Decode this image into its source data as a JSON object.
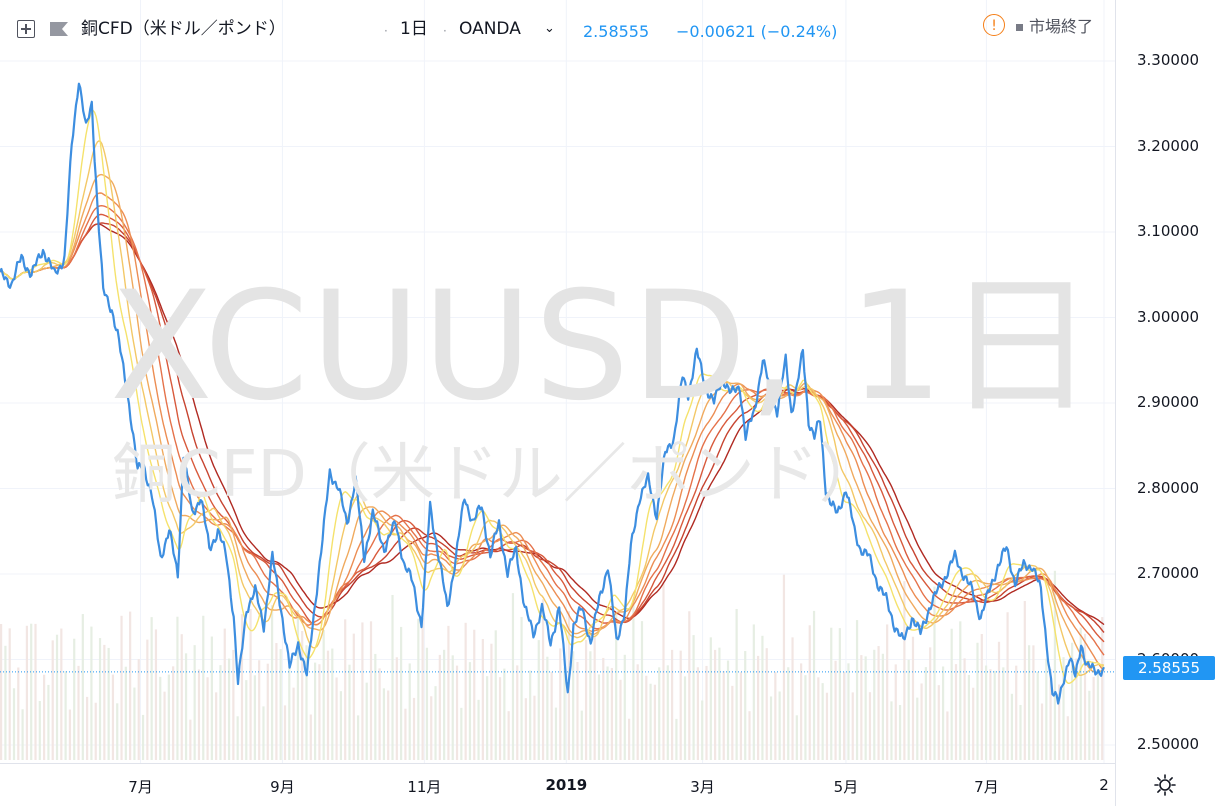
{
  "header": {
    "instrument": "銅CFD（米ドル／ポンド）",
    "separator": "·",
    "interval": "1日",
    "broker": "OANDA",
    "price": "2.58555",
    "change": "−0.00621 (−0.24%)",
    "market_status": "市場終了",
    "warning_icon": "warning-circle-icon",
    "add_icon": "plus-square-icon",
    "flag_icon": "flag-icon",
    "broker_icon": "chevron-down-icon"
  },
  "watermark": {
    "symbol": "XCUUSD, 1日",
    "name": "銅CFD（米ドル／ポンド）"
  },
  "last_price_label": "2.58555",
  "settings_icon": "gear-icon",
  "colors": {
    "price_line": "#3d8ee0",
    "ribbon": [
      "#f5e26c",
      "#f3c867",
      "#f0aa5e",
      "#ec8d53",
      "#e5724a",
      "#d85a3c",
      "#c74430",
      "#b02a22"
    ],
    "volume": "#e8ece4",
    "accent": "#2196f3",
    "warning": "#f57f17"
  },
  "chart_data": {
    "type": "line",
    "title": "銅CFD（米ドル／ポンド）· 1日 · OANDA",
    "ylim": [
      2.465,
      3.325
    ],
    "yticks": [
      "3.30000",
      "3.20000",
      "3.10000",
      "3.00000",
      "2.90000",
      "2.80000",
      "2.70000",
      "2.60000",
      "2.50000"
    ],
    "ytick_values": [
      3.3,
      3.2,
      3.1,
      3.0,
      2.9,
      2.8,
      2.7,
      2.6,
      2.5
    ],
    "xlabels": [
      "7月",
      "9月",
      "11月",
      "2019",
      "3月",
      "5月",
      "7月",
      "2"
    ],
    "xlabel_index": [
      98,
      197,
      296,
      395,
      490,
      590,
      688,
      770
    ],
    "xlim": [
      0,
      770
    ],
    "grid": true,
    "last_value": 2.58555,
    "price_anchors": [
      [
        0,
        3.05
      ],
      [
        8,
        3.04
      ],
      [
        15,
        3.07
      ],
      [
        22,
        3.05
      ],
      [
        30,
        3.08
      ],
      [
        38,
        3.05
      ],
      [
        45,
        3.07
      ],
      [
        50,
        3.2
      ],
      [
        55,
        3.28
      ],
      [
        60,
        3.22
      ],
      [
        64,
        3.25
      ],
      [
        68,
        3.13
      ],
      [
        72,
        3.03
      ],
      [
        78,
        3.01
      ],
      [
        82,
        2.98
      ],
      [
        90,
        2.9
      ],
      [
        96,
        2.82
      ],
      [
        100,
        2.83
      ],
      [
        106,
        2.79
      ],
      [
        112,
        2.72
      ],
      [
        118,
        2.75
      ],
      [
        124,
        2.7
      ],
      [
        128,
        2.84
      ],
      [
        134,
        2.77
      ],
      [
        140,
        2.79
      ],
      [
        146,
        2.73
      ],
      [
        152,
        2.75
      ],
      [
        158,
        2.72
      ],
      [
        163,
        2.65
      ],
      [
        166,
        2.57
      ],
      [
        172,
        2.66
      ],
      [
        178,
        2.68
      ],
      [
        184,
        2.64
      ],
      [
        190,
        2.72
      ],
      [
        196,
        2.66
      ],
      [
        202,
        2.59
      ],
      [
        208,
        2.62
      ],
      [
        214,
        2.58
      ],
      [
        220,
        2.67
      ],
      [
        225,
        2.74
      ],
      [
        230,
        2.82
      ],
      [
        236,
        2.8
      ],
      [
        242,
        2.76
      ],
      [
        248,
        2.81
      ],
      [
        254,
        2.72
      ],
      [
        260,
        2.77
      ],
      [
        268,
        2.73
      ],
      [
        276,
        2.76
      ],
      [
        282,
        2.71
      ],
      [
        288,
        2.69
      ],
      [
        294,
        2.64
      ],
      [
        300,
        2.78
      ],
      [
        306,
        2.72
      ],
      [
        312,
        2.66
      ],
      [
        318,
        2.72
      ],
      [
        324,
        2.79
      ],
      [
        330,
        2.76
      ],
      [
        336,
        2.78
      ],
      [
        342,
        2.72
      ],
      [
        348,
        2.76
      ],
      [
        354,
        2.7
      ],
      [
        360,
        2.73
      ],
      [
        366,
        2.66
      ],
      [
        372,
        2.63
      ],
      [
        378,
        2.66
      ],
      [
        384,
        2.62
      ],
      [
        390,
        2.66
      ],
      [
        396,
        2.56
      ],
      [
        400,
        2.64
      ],
      [
        406,
        2.66
      ],
      [
        412,
        2.62
      ],
      [
        418,
        2.67
      ],
      [
        424,
        2.71
      ],
      [
        430,
        2.62
      ],
      [
        436,
        2.66
      ],
      [
        440,
        2.73
      ],
      [
        446,
        2.79
      ],
      [
        452,
        2.81
      ],
      [
        458,
        2.77
      ],
      [
        464,
        2.84
      ],
      [
        470,
        2.86
      ],
      [
        476,
        2.93
      ],
      [
        480,
        2.91
      ],
      [
        486,
        2.96
      ],
      [
        492,
        2.92
      ],
      [
        498,
        2.9
      ],
      [
        504,
        2.93
      ],
      [
        510,
        2.91
      ],
      [
        516,
        2.92
      ],
      [
        520,
        2.86
      ],
      [
        526,
        2.89
      ],
      [
        532,
        2.95
      ],
      [
        538,
        2.91
      ],
      [
        542,
        2.89
      ],
      [
        548,
        2.95
      ],
      [
        552,
        2.89
      ],
      [
        556,
        2.92
      ],
      [
        560,
        2.96
      ],
      [
        564,
        2.88
      ],
      [
        568,
        2.86
      ],
      [
        572,
        2.88
      ],
      [
        576,
        2.8
      ],
      [
        580,
        2.78
      ],
      [
        584,
        2.77
      ],
      [
        590,
        2.8
      ],
      [
        596,
        2.75
      ],
      [
        600,
        2.73
      ],
      [
        606,
        2.72
      ],
      [
        612,
        2.69
      ],
      [
        618,
        2.67
      ],
      [
        624,
        2.64
      ],
      [
        630,
        2.62
      ],
      [
        636,
        2.65
      ],
      [
        642,
        2.63
      ],
      [
        648,
        2.66
      ],
      [
        654,
        2.68
      ],
      [
        660,
        2.7
      ],
      [
        666,
        2.72
      ],
      [
        672,
        2.7
      ],
      [
        678,
        2.68
      ],
      [
        684,
        2.65
      ],
      [
        690,
        2.68
      ],
      [
        696,
        2.71
      ],
      [
        702,
        2.73
      ],
      [
        708,
        2.69
      ],
      [
        714,
        2.71
      ],
      [
        720,
        2.71
      ],
      [
        726,
        2.68
      ],
      [
        730,
        2.62
      ],
      [
        734,
        2.56
      ],
      [
        738,
        2.55
      ],
      [
        742,
        2.58
      ],
      [
        746,
        2.6
      ],
      [
        750,
        2.58
      ],
      [
        754,
        2.62
      ],
      [
        758,
        2.59
      ],
      [
        762,
        2.59
      ],
      [
        770,
        2.585
      ]
    ],
    "series": [
      {
        "name": "",
        "role": "price",
        "color": "#3d8ee0"
      },
      {
        "name": "",
        "role": "ma",
        "period": 5,
        "color": "#f5e26c"
      },
      {
        "name": "",
        "role": "ma",
        "period": 8,
        "color": "#f3c867"
      },
      {
        "name": "",
        "role": "ma",
        "period": 11,
        "color": "#f0aa5e"
      },
      {
        "name": "",
        "role": "ma",
        "period": 14,
        "color": "#ec8d53"
      },
      {
        "name": "",
        "role": "ma",
        "period": 17,
        "color": "#e5724a"
      },
      {
        "name": "",
        "role": "ma",
        "period": 20,
        "color": "#d85a3c"
      },
      {
        "name": "",
        "role": "ma",
        "period": 23,
        "color": "#c74430"
      },
      {
        "name": "",
        "role": "ma",
        "period": 26,
        "color": "#b02a22"
      }
    ]
  }
}
